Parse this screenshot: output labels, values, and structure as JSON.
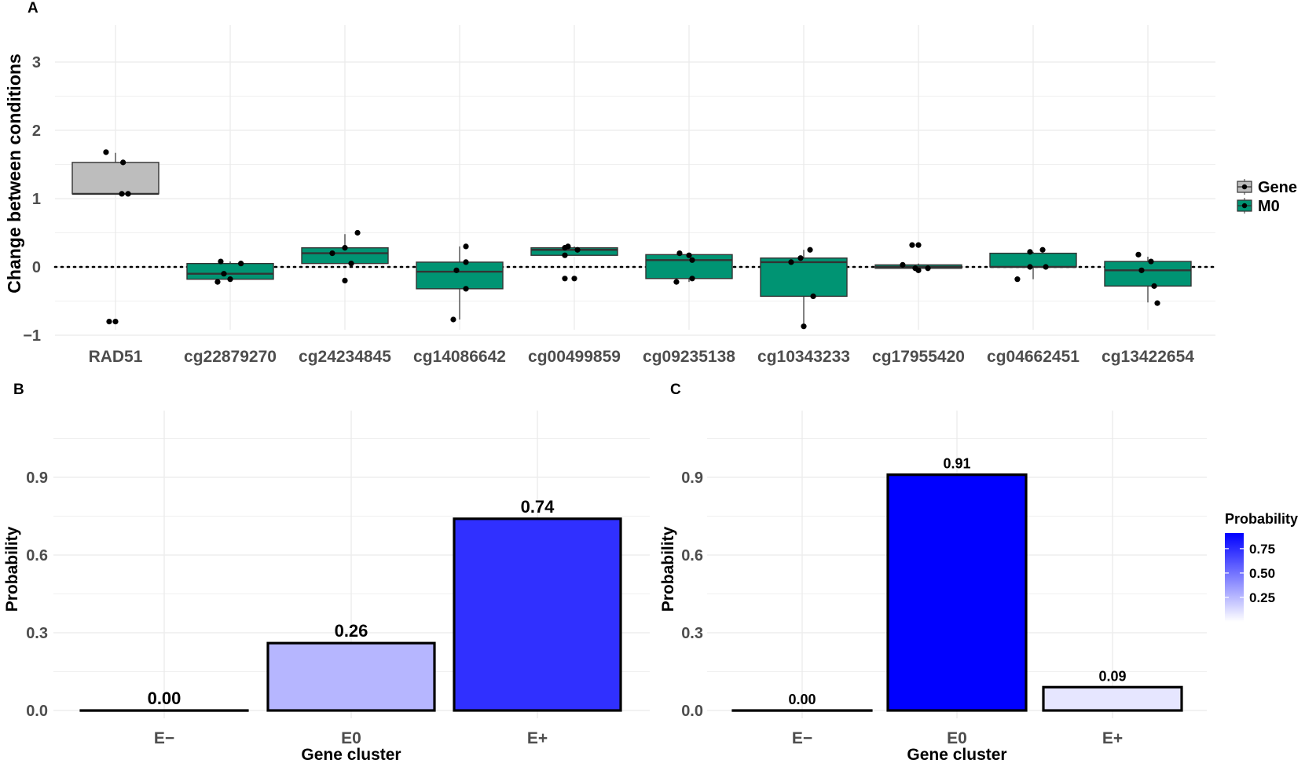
{
  "chart_data": [
    {
      "panel": "A",
      "type": "boxplot",
      "ylabel": "Change between conditions",
      "xlabel": "",
      "ylim": [
        -1.2,
        3.3
      ],
      "yticks": [
        3,
        2,
        1,
        0,
        -1
      ],
      "ytick_labels": [
        "3",
        "2",
        "1",
        "0",
        "−1"
      ],
      "reference_line": 0,
      "categories": [
        {
          "label": "RAD51",
          "group": "Gene",
          "q1": 1.07,
          "median": 1.07,
          "q3": 1.53,
          "whisker_low": 1.07,
          "whisker_high": 1.67,
          "points": [
            [
              -0.15,
              1.68
            ],
            [
              0.12,
              1.53
            ],
            [
              0.1,
              1.07
            ],
            [
              0.2,
              1.07
            ],
            [
              -0.1,
              -0.8
            ],
            [
              0.0,
              -0.8
            ]
          ]
        },
        {
          "label": "cg22879270",
          "group": "M0",
          "q1": -0.18,
          "median": -0.1,
          "q3": 0.05,
          "whisker_low": -0.2,
          "whisker_high": 0.08,
          "points": [
            [
              -0.15,
              0.08
            ],
            [
              0.17,
              0.05
            ],
            [
              -0.1,
              -0.1
            ],
            [
              0.0,
              -0.18
            ],
            [
              -0.2,
              -0.22
            ]
          ]
        },
        {
          "label": "cg24234845",
          "group": "M0",
          "q1": 0.05,
          "median": 0.2,
          "q3": 0.28,
          "whisker_low": 0.05,
          "whisker_high": 0.48,
          "points": [
            [
              0.2,
              0.5
            ],
            [
              0.0,
              0.28
            ],
            [
              -0.2,
              0.2
            ],
            [
              0.1,
              0.05
            ],
            [
              0.0,
              -0.2
            ]
          ]
        },
        {
          "label": "cg14086642",
          "group": "M0",
          "q1": -0.32,
          "median": -0.07,
          "q3": 0.07,
          "whisker_low": -0.77,
          "whisker_high": 0.3,
          "points": [
            [
              0.1,
              0.3
            ],
            [
              0.1,
              0.07
            ],
            [
              -0.05,
              -0.05
            ],
            [
              0.1,
              -0.32
            ],
            [
              -0.1,
              -0.77
            ]
          ]
        },
        {
          "label": "cg00499859",
          "group": "M0",
          "q1": 0.17,
          "median": 0.25,
          "q3": 0.28,
          "whisker_low": 0.17,
          "whisker_high": 0.3,
          "points": [
            [
              -0.15,
              0.28
            ],
            [
              -0.1,
              0.3
            ],
            [
              0.05,
              0.25
            ],
            [
              -0.15,
              0.17
            ],
            [
              -0.15,
              -0.17
            ],
            [
              0.0,
              -0.17
            ]
          ]
        },
        {
          "label": "cg09235138",
          "group": "M0",
          "q1": -0.17,
          "median": 0.1,
          "q3": 0.18,
          "whisker_low": -0.22,
          "whisker_high": 0.2,
          "points": [
            [
              -0.15,
              0.2
            ],
            [
              0.0,
              0.17
            ],
            [
              0.05,
              0.1
            ],
            [
              0.05,
              -0.17
            ],
            [
              -0.2,
              -0.22
            ]
          ]
        },
        {
          "label": "cg10343233",
          "group": "M0",
          "q1": -0.43,
          "median": 0.07,
          "q3": 0.13,
          "whisker_low": -0.85,
          "whisker_high": 0.25,
          "points": [
            [
              0.1,
              0.25
            ],
            [
              -0.05,
              0.13
            ],
            [
              -0.2,
              0.07
            ],
            [
              0.15,
              -0.43
            ],
            [
              0.0,
              -0.87
            ]
          ]
        },
        {
          "label": "cg17955420",
          "group": "M0",
          "q1": -0.02,
          "median": 0.0,
          "q3": 0.03,
          "whisker_low": -0.05,
          "whisker_high": 0.05,
          "points": [
            [
              -0.1,
              0.32
            ],
            [
              0.0,
              0.32
            ],
            [
              -0.25,
              0.03
            ],
            [
              -0.05,
              -0.02
            ],
            [
              0.0,
              -0.05
            ],
            [
              0.15,
              -0.02
            ]
          ]
        },
        {
          "label": "cg04662451",
          "group": "M0",
          "q1": 0.0,
          "median": 0.0,
          "q3": 0.2,
          "whisker_low": -0.18,
          "whisker_high": 0.22,
          "points": [
            [
              -0.05,
              0.22
            ],
            [
              0.15,
              0.25
            ],
            [
              -0.05,
              0.0
            ],
            [
              0.2,
              0.0
            ],
            [
              -0.25,
              -0.18
            ]
          ]
        },
        {
          "label": "cg13422654",
          "group": "M0",
          "q1": -0.28,
          "median": -0.05,
          "q3": 0.08,
          "whisker_low": -0.52,
          "whisker_high": 0.15,
          "points": [
            [
              -0.15,
              0.18
            ],
            [
              0.05,
              0.08
            ],
            [
              -0.1,
              -0.05
            ],
            [
              0.1,
              -0.28
            ],
            [
              0.15,
              -0.53
            ]
          ]
        }
      ],
      "legend": [
        {
          "label": "Gene",
          "color": "#bdbdbd"
        },
        {
          "label": "M0",
          "color": "#009473"
        }
      ]
    },
    {
      "panel": "B",
      "type": "bar",
      "categories": [
        "E−",
        "E0",
        "E+"
      ],
      "values": [
        0.0,
        0.26,
        0.74
      ],
      "value_labels": [
        "0.00",
        "0.26",
        "0.74"
      ],
      "xlabel": "Gene cluster",
      "ylabel": "Probability",
      "ylim": [
        -0.02,
        1.15
      ],
      "yticks": [
        0.0,
        0.3,
        0.6,
        0.9
      ],
      "ytick_labels": [
        "0.0",
        "0.3",
        "0.6",
        "0.9"
      ]
    },
    {
      "panel": "C",
      "type": "bar",
      "categories": [
        "E−",
        "E0",
        "E+"
      ],
      "values": [
        0.0,
        0.91,
        0.09
      ],
      "value_labels": [
        "0.00",
        "0.91",
        "0.09"
      ],
      "xlabel": "Gene cluster",
      "ylabel": "Probability",
      "ylim": [
        -0.02,
        1.15
      ],
      "yticks": [
        0.0,
        0.3,
        0.6,
        0.9
      ],
      "ytick_labels": [
        "0.0",
        "0.3",
        "0.6",
        "0.9"
      ],
      "colorbar": {
        "title": "Probability",
        "ticks": [
          0.75,
          0.5,
          0.25
        ],
        "tick_labels": [
          "0.75",
          "0.50",
          "0.25"
        ],
        "range": [
          0.0,
          0.91
        ],
        "color_low": "#ffffff",
        "color_high": "#0000ff"
      }
    }
  ],
  "panel_labels": [
    "A",
    "B",
    "C"
  ]
}
